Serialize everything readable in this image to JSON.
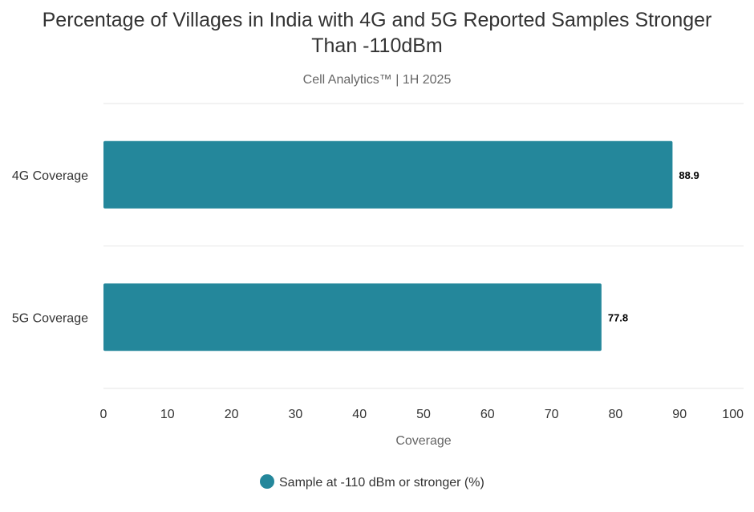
{
  "chart_data": {
    "type": "bar",
    "orientation": "horizontal",
    "title": "Percentage of Villages in India with 4G and 5G Reported Samples Stronger Than -110dBm",
    "title_lines": [
      "Percentage of Villages in India with 4G and 5G Reported Samples Stronger",
      "Than -110dBm"
    ],
    "subtitle": "Cell Analytics™ | 1H 2025",
    "categories": [
      "4G Coverage",
      "5G Coverage"
    ],
    "series": [
      {
        "name": "Sample at -110 dBm or stronger (%)",
        "values": [
          88.9,
          77.8
        ],
        "color": "#24879b"
      }
    ],
    "data_labels": [
      "88.9",
      "77.8"
    ],
    "xlabel": "Coverage",
    "ylabel": "",
    "xlim": [
      0,
      100
    ],
    "xticks": [
      "0",
      "10",
      "20",
      "30",
      "40",
      "50",
      "60",
      "70",
      "80",
      "90",
      "100"
    ],
    "grid": true,
    "legend_position": "bottom"
  }
}
